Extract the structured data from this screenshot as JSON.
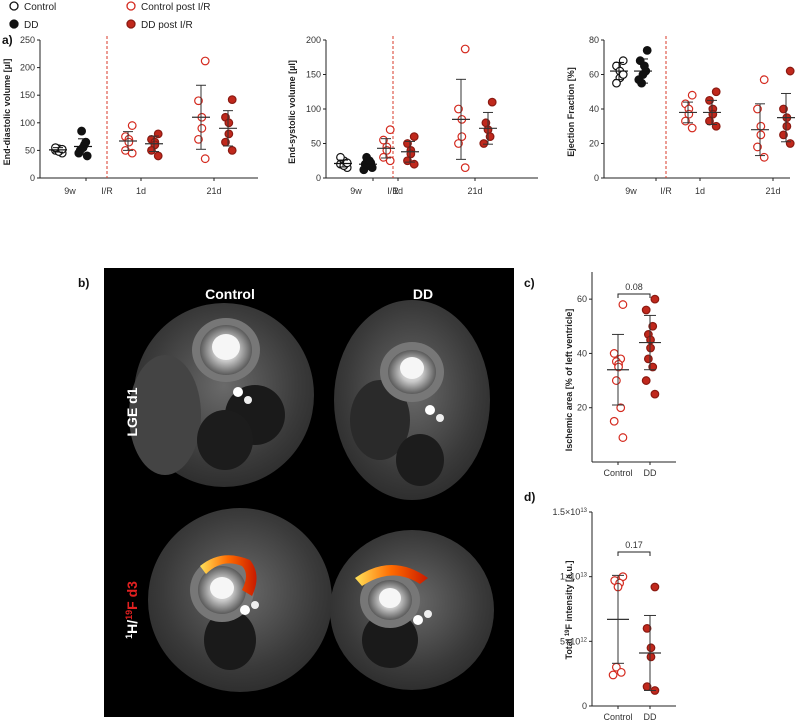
{
  "panel_labels": {
    "a": "a)",
    "b": "b)",
    "c": "c)",
    "d": "d)"
  },
  "legend": {
    "control": "Control",
    "dd": "DD",
    "control_post": "Control post I/R",
    "dd_post": "DD post I/R"
  },
  "colors": {
    "black": "#111111",
    "red": "#d42a1f",
    "red_fill": "#c0281c",
    "hollow": "#ffffff",
    "dash": "#d83a2a"
  },
  "mri": {
    "col_control": "Control",
    "col_dd": "DD",
    "row_lge": "LGE d1",
    "row_h": "H/",
    "row_h_sup": "1",
    "row_f_sup": "19",
    "row_f": "F d3"
  },
  "chart_data": [
    {
      "id": "edv",
      "type": "scatter",
      "ylabel": "End-diastolic volume [µl]",
      "ylim": [
        0,
        250
      ],
      "yticks": [
        "0",
        "50",
        "100",
        "150",
        "200",
        "250"
      ],
      "ytick_values": [
        0,
        50,
        100,
        150,
        200,
        250
      ],
      "xticks": [
        "9w",
        "I/R",
        "1d",
        "21d"
      ],
      "groups": [
        {
          "series": "Control",
          "time": "9w",
          "filled": false,
          "color": "black",
          "values": [
            45,
            50,
            53,
            48,
            55,
            52
          ],
          "mean": 51,
          "sd": 4
        },
        {
          "series": "DD",
          "time": "9w",
          "filled": true,
          "color": "black",
          "values": [
            40,
            50,
            60,
            55,
            85,
            65,
            45
          ],
          "mean": 57,
          "sd": 14
        },
        {
          "series": "Control post I/R",
          "time": "1d",
          "filled": false,
          "color": "red",
          "values": [
            95,
            75,
            70,
            65,
            50,
            45
          ],
          "mean": 67,
          "sd": 17
        },
        {
          "series": "DD post I/R",
          "time": "1d",
          "filled": true,
          "color": "red",
          "values": [
            80,
            70,
            65,
            60,
            50,
            40
          ],
          "mean": 62,
          "sd": 14
        },
        {
          "series": "Control post I/R",
          "time": "21d",
          "filled": false,
          "color": "red",
          "values": [
            212,
            140,
            110,
            90,
            70,
            35
          ],
          "mean": 110,
          "sd": 58
        },
        {
          "series": "DD post I/R",
          "time": "21d",
          "filled": true,
          "color": "red",
          "values": [
            142,
            110,
            100,
            80,
            65,
            50
          ],
          "mean": 90,
          "sd": 32
        }
      ]
    },
    {
      "id": "esv",
      "type": "scatter",
      "ylabel": "End-systolic volume [µl]",
      "ylim": [
        0,
        200
      ],
      "yticks": [
        "0",
        "50",
        "100",
        "150",
        "200"
      ],
      "ytick_values": [
        0,
        50,
        100,
        150,
        200
      ],
      "xticks": [
        "9w",
        "I/R",
        "1d",
        "21d"
      ],
      "groups": [
        {
          "series": "Control",
          "time": "9w",
          "filled": false,
          "color": "black",
          "values": [
            15,
            20,
            25,
            18,
            30,
            22
          ],
          "mean": 21,
          "sd": 5
        },
        {
          "series": "DD",
          "time": "9w",
          "filled": true,
          "color": "black",
          "values": [
            15,
            20,
            25,
            18,
            30,
            22,
            12
          ],
          "mean": 20,
          "sd": 6
        },
        {
          "series": "Control post I/R",
          "time": "1d",
          "filled": false,
          "color": "red",
          "values": [
            70,
            55,
            45,
            40,
            30,
            25
          ],
          "mean": 43,
          "sd": 14
        },
        {
          "series": "DD post I/R",
          "time": "1d",
          "filled": true,
          "color": "red",
          "values": [
            60,
            50,
            40,
            35,
            25,
            20
          ],
          "mean": 38,
          "sd": 15
        },
        {
          "series": "Control post I/R",
          "time": "21d",
          "filled": false,
          "color": "red",
          "values": [
            187,
            100,
            85,
            60,
            50,
            15
          ],
          "mean": 85,
          "sd": 58
        },
        {
          "series": "DD post I/R",
          "time": "21d",
          "filled": true,
          "color": "red",
          "values": [
            110,
            80,
            70,
            60,
            50
          ],
          "mean": 72,
          "sd": 23
        }
      ]
    },
    {
      "id": "ef",
      "type": "scatter",
      "ylabel": "Ejection Fraction [%]",
      "ylim": [
        0,
        80
      ],
      "yticks": [
        "0",
        "20",
        "40",
        "60",
        "80"
      ],
      "ytick_values": [
        0,
        20,
        40,
        60,
        80
      ],
      "xticks": [
        "9w",
        "I/R",
        "1d",
        "21d"
      ],
      "groups": [
        {
          "series": "Control",
          "time": "9w",
          "filled": false,
          "color": "black",
          "values": [
            68,
            65,
            62,
            58,
            55,
            60
          ],
          "mean": 62,
          "sd": 5
        },
        {
          "series": "DD",
          "time": "9w",
          "filled": true,
          "color": "black",
          "values": [
            74,
            68,
            65,
            60,
            55,
            62,
            57
          ],
          "mean": 62,
          "sd": 7
        },
        {
          "series": "Control post I/R",
          "time": "1d",
          "filled": false,
          "color": "red",
          "values": [
            48,
            43,
            40,
            37,
            33,
            29
          ],
          "mean": 38,
          "sd": 6
        },
        {
          "series": "DD post I/R",
          "time": "1d",
          "filled": true,
          "color": "red",
          "values": [
            50,
            45,
            40,
            37,
            33,
            30
          ],
          "mean": 38,
          "sd": 7
        },
        {
          "series": "Control post I/R",
          "time": "21d",
          "filled": false,
          "color": "red",
          "values": [
            57,
            40,
            30,
            25,
            18,
            12
          ],
          "mean": 28,
          "sd": 15
        },
        {
          "series": "DD post I/R",
          "time": "21d",
          "filled": true,
          "color": "red",
          "values": [
            62,
            40,
            35,
            30,
            25,
            20
          ],
          "mean": 35,
          "sd": 14
        }
      ]
    },
    {
      "id": "ischemic",
      "type": "scatter",
      "ylabel": "Ischemic area [% of left ventricle]",
      "ylim": [
        0,
        70
      ],
      "yticks": [
        "20",
        "40",
        "60"
      ],
      "ytick_values": [
        20,
        40,
        60
      ],
      "categories": [
        "Control",
        "DD"
      ],
      "pvalue": "0.08",
      "groups": [
        {
          "series": "Control",
          "filled": false,
          "color": "red",
          "values": [
            58,
            40,
            38,
            37,
            36,
            35,
            30,
            20,
            15,
            9
          ],
          "mean": 34,
          "sd": 13
        },
        {
          "series": "DD",
          "filled": true,
          "color": "red",
          "values": [
            60,
            56,
            50,
            47,
            45,
            42,
            38,
            35,
            30,
            25
          ],
          "mean": 44,
          "sd": 10
        }
      ]
    },
    {
      "id": "fluorine",
      "type": "scatter",
      "ylabel_pre": "Total ",
      "ylabel_sup": "19",
      "ylabel_post": "F intensity [a.u.]",
      "ylim": [
        0,
        15
      ],
      "ytick_values": [
        0,
        5,
        10,
        15
      ],
      "yticks": [
        {
          "base": "0",
          "exp": ""
        },
        {
          "base": "5×10",
          "exp": "12"
        },
        {
          "base": "1×10",
          "exp": "13"
        },
        {
          "base": "1.5×10",
          "exp": "13"
        }
      ],
      "categories": [
        "Control",
        "DD"
      ],
      "pvalue": "0.17",
      "value_unit": "×10^12",
      "groups": [
        {
          "series": "Control",
          "filled": false,
          "color": "red",
          "values": [
            10.0,
            9.7,
            9.5,
            9.2,
            3.0,
            2.6,
            2.4
          ],
          "mean": 6.7,
          "sd": 3.4
        },
        {
          "series": "DD",
          "filled": true,
          "color": "red",
          "values": [
            9.2,
            6.0,
            4.5,
            3.8,
            1.5,
            1.2
          ],
          "mean": 4.1,
          "sd": 2.9
        }
      ]
    }
  ]
}
